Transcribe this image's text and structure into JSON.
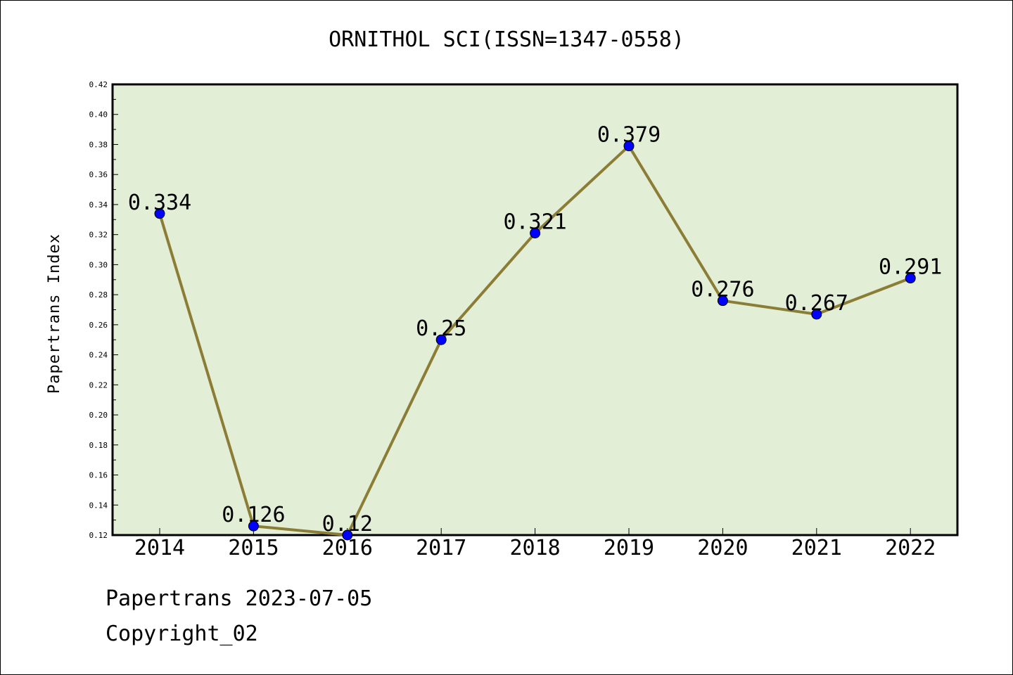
{
  "chart_data": {
    "type": "line",
    "title": "ORNITHOL SCI(ISSN=1347-0558)",
    "xlabel": "",
    "ylabel": "Papertrans Index",
    "categories": [
      "2014",
      "2015",
      "2016",
      "2017",
      "2018",
      "2019",
      "2020",
      "2021",
      "2022"
    ],
    "series": [
      {
        "values": [
          0.334,
          0.126,
          0.12,
          0.25,
          0.321,
          0.379,
          0.276,
          0.267,
          0.291
        ],
        "labels": [
          "0.334",
          "0.126",
          "0.12",
          "0.25",
          "0.321",
          "0.379",
          "0.276",
          "0.267",
          "0.291"
        ]
      }
    ],
    "ylim": [
      0.12,
      0.42
    ],
    "yticks": [
      "0.12",
      "0.14",
      "0.16",
      "0.18",
      "0.20",
      "0.22",
      "0.24",
      "0.26",
      "0.28",
      "0.30",
      "0.32",
      "0.34",
      "0.36",
      "0.38",
      "0.40",
      "0.42"
    ],
    "grid": false,
    "legend": "none",
    "colors": {
      "plot_background": "#e2efd6",
      "line": "#8b7d35",
      "marker": "#0000ff"
    }
  },
  "footer": {
    "line1": "Papertrans 2023-07-05",
    "line2": "Copyright_02"
  }
}
